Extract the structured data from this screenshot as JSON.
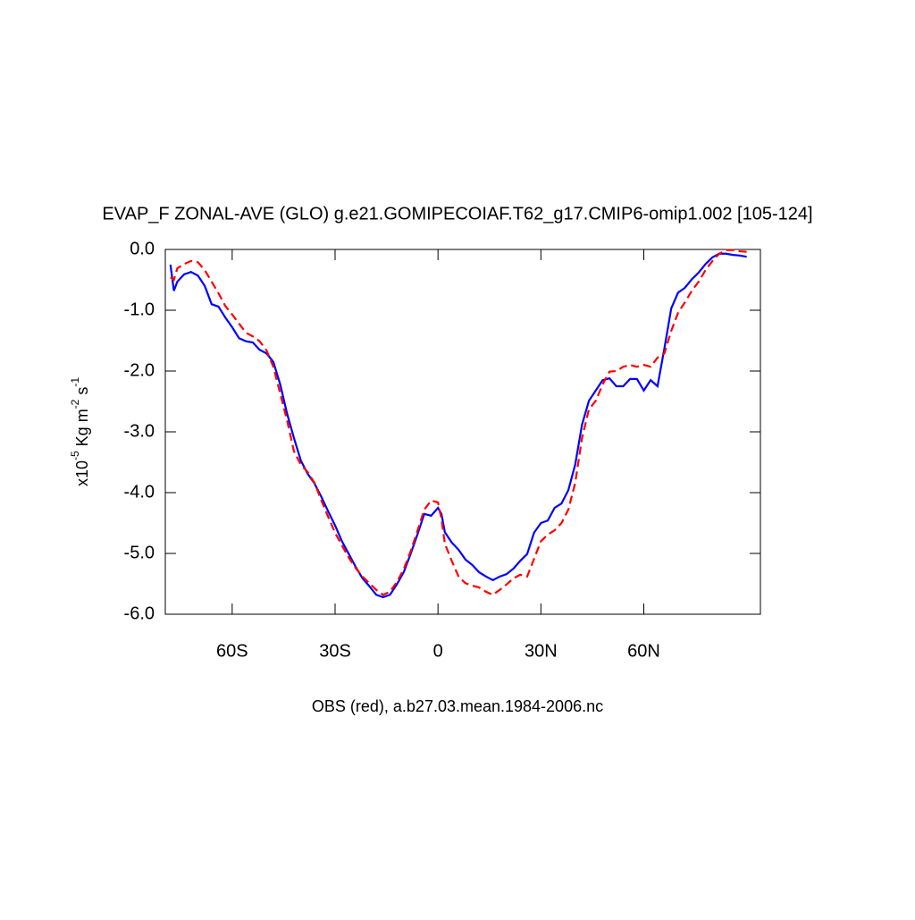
{
  "chart_data": {
    "type": "line",
    "title": "EVAP_F ZONAL-AVE (GLO) g.e21.GOMIPECOIAF.T62_g17.CMIP6-omip1.002 [105-124]",
    "x_label": "OBS (red), a.b27.03.mean.1984-2006.nc",
    "y_label": [
      "x10",
      "-5",
      " Kg m",
      "-2",
      " s",
      "-1"
    ],
    "x": [
      -78,
      -77,
      -76,
      -74,
      -72,
      -70,
      -68,
      -66,
      -64,
      -62,
      -60,
      -58,
      -56,
      -54,
      -52,
      -50,
      -48,
      -46,
      -44,
      -42,
      -40,
      -38,
      -36,
      -34,
      -32,
      -30,
      -28,
      -26,
      -24,
      -22,
      -20,
      -18,
      -16,
      -14,
      -12,
      -10,
      -8,
      -6,
      -4,
      -2,
      0,
      1,
      2,
      4,
      6,
      8,
      10,
      12,
      14,
      16,
      18,
      20,
      22,
      24,
      26,
      28,
      30,
      32,
      34,
      36,
      38,
      40,
      42,
      44,
      46,
      48,
      50,
      52,
      54,
      56,
      58,
      60,
      62,
      64,
      66,
      68,
      70,
      72,
      74,
      76,
      78,
      80,
      82,
      84,
      86,
      88,
      90
    ],
    "series": [
      {
        "color": "#0000ff",
        "line_style": "solid",
        "values": [
          -0.25,
          -0.68,
          -0.53,
          -0.41,
          -0.37,
          -0.43,
          -0.6,
          -0.9,
          -0.94,
          -1.12,
          -1.28,
          -1.46,
          -1.51,
          -1.53,
          -1.65,
          -1.71,
          -1.85,
          -2.22,
          -2.7,
          -3.1,
          -3.47,
          -3.69,
          -3.85,
          -4.07,
          -4.31,
          -4.54,
          -4.8,
          -5.01,
          -5.22,
          -5.41,
          -5.54,
          -5.68,
          -5.72,
          -5.68,
          -5.51,
          -5.31,
          -5.01,
          -4.69,
          -4.35,
          -4.38,
          -4.25,
          -4.35,
          -4.65,
          -4.82,
          -4.94,
          -5.1,
          -5.19,
          -5.31,
          -5.38,
          -5.44,
          -5.38,
          -5.34,
          -5.25,
          -5.12,
          -5.01,
          -4.66,
          -4.5,
          -4.46,
          -4.25,
          -4.18,
          -3.96,
          -3.54,
          -2.88,
          -2.49,
          -2.32,
          -2.15,
          -2.12,
          -2.25,
          -2.25,
          -2.13,
          -2.13,
          -2.32,
          -2.15,
          -2.25,
          -1.63,
          -0.97,
          -0.71,
          -0.63,
          -0.49,
          -0.38,
          -0.24,
          -0.13,
          -0.07,
          -0.07,
          -0.09,
          -0.1,
          -0.12
        ]
      },
      {
        "color": "#ff0000",
        "line_style": "dashed",
        "values": [
          -0.46,
          -0.5,
          -0.31,
          -0.24,
          -0.19,
          -0.21,
          -0.34,
          -0.53,
          -0.72,
          -0.93,
          -1.07,
          -1.22,
          -1.37,
          -1.43,
          -1.51,
          -1.66,
          -1.93,
          -2.37,
          -2.81,
          -3.32,
          -3.54,
          -3.66,
          -3.84,
          -4.13,
          -4.4,
          -4.66,
          -4.87,
          -5.07,
          -5.24,
          -5.38,
          -5.49,
          -5.6,
          -5.68,
          -5.63,
          -5.47,
          -5.26,
          -4.97,
          -4.63,
          -4.28,
          -4.13,
          -4.16,
          -4.43,
          -4.84,
          -5.12,
          -5.38,
          -5.49,
          -5.53,
          -5.56,
          -5.63,
          -5.68,
          -5.6,
          -5.51,
          -5.41,
          -5.35,
          -5.38,
          -5.09,
          -4.8,
          -4.69,
          -4.62,
          -4.5,
          -4.28,
          -3.84,
          -3.1,
          -2.63,
          -2.49,
          -2.22,
          -2.01,
          -2.0,
          -1.93,
          -1.9,
          -1.93,
          -1.9,
          -1.93,
          -1.78,
          -1.71,
          -1.34,
          -1.04,
          -0.87,
          -0.68,
          -0.53,
          -0.34,
          -0.19,
          -0.07,
          -0.01,
          -0.01,
          -0.03,
          -0.04
        ]
      }
    ],
    "xlim": [
      -79.5,
      94
    ],
    "xticks": [
      {
        "value": -60,
        "label": "60S"
      },
      {
        "value": -30,
        "label": "30S"
      },
      0,
      {
        "value": 30,
        "label": "30N"
      },
      {
        "value": 60,
        "label": "60N"
      }
    ],
    "ylim": [
      -6,
      0
    ],
    "yticks": [
      {
        "value": -6,
        "label": "-6.0"
      },
      {
        "value": -5,
        "label": "-5.0"
      },
      {
        "value": -4,
        "label": "-4.0"
      },
      {
        "value": -3,
        "label": "-3.0"
      },
      {
        "value": -2,
        "label": "-2.0"
      },
      {
        "value": -1,
        "label": "-1.0"
      },
      {
        "value": 0,
        "label": "0.0"
      }
    ]
  }
}
